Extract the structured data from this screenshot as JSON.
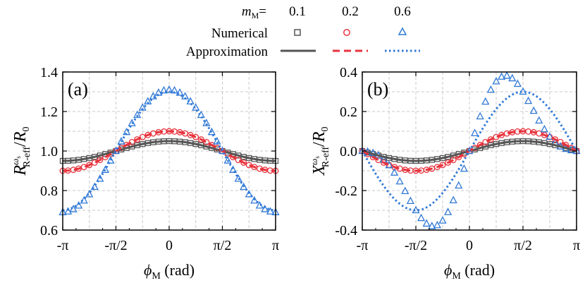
{
  "legend": {
    "header_symbol": "m",
    "header_sub": "M",
    "header_suffix": "=",
    "values": [
      "0.1",
      "0.2",
      "0.6"
    ],
    "rows": [
      "Numerical",
      "Approximation"
    ],
    "colors": [
      "#555555",
      "#e8323c",
      "#2f78d6"
    ]
  },
  "chart_data": [
    {
      "type": "line",
      "panel_label": "(a)",
      "ylabel": {
        "main": "R",
        "sup": "ω",
        "supsub": "s",
        "sub": "R-eff",
        "div": "/",
        "denom": "R",
        "denom_sub": "0"
      },
      "xlabel": {
        "main": "ϕ",
        "sub": "M",
        "unit": " (rad)"
      },
      "xlim": [
        -3.14159,
        3.14159
      ],
      "ylim": [
        0.6,
        1.4
      ],
      "yticks": [
        "0.6",
        "0.8",
        "1.0",
        "1.2",
        "1.4"
      ],
      "yticks_values": [
        0.6,
        0.8,
        1.0,
        1.2,
        1.4
      ],
      "xticks": [
        "-π",
        "-π/2",
        "0",
        "π/2",
        "π"
      ],
      "grid": true,
      "series": [
        {
          "name": "0.1",
          "kind": "numerical",
          "amp": 0.05,
          "shift": 0.0,
          "n2": 0.0
        },
        {
          "name": "0.2",
          "kind": "numerical",
          "amp": 0.1,
          "shift": 0.0,
          "n2": 0.0
        },
        {
          "name": "0.6",
          "kind": "numerical",
          "amp": 0.31,
          "shift": 0.0,
          "n2": 0.0
        },
        {
          "name": "0.1",
          "kind": "approximation",
          "amp": 0.05,
          "shift": 0.0
        },
        {
          "name": "0.2",
          "kind": "approximation",
          "amp": 0.1,
          "shift": 0.0
        },
        {
          "name": "0.6",
          "kind": "approximation",
          "amp": 0.3,
          "shift": 0.0
        }
      ]
    },
    {
      "type": "line",
      "panel_label": "(b)",
      "ylabel": {
        "main": "X",
        "sup": "ω",
        "supsub": "s",
        "sub": "R-eff",
        "div": "/",
        "denom": "R",
        "denom_sub": "0"
      },
      "xlabel": {
        "main": "ϕ",
        "sub": "M",
        "unit": " (rad)"
      },
      "xlim": [
        -3.14159,
        3.14159
      ],
      "ylim": [
        -0.4,
        0.4
      ],
      "yticks": [
        "-0.4",
        "-0.2",
        "0.0",
        "0.2",
        "0.4"
      ],
      "yticks_values": [
        -0.4,
        -0.2,
        0.0,
        0.2,
        0.4
      ],
      "xticks": [
        "-π",
        "-π/2",
        "0",
        "π/2",
        "π"
      ],
      "grid": true,
      "series": [
        {
          "name": "0.1",
          "kind": "numerical",
          "amp": 0.05,
          "shift": 0.0,
          "n2": 0.0
        },
        {
          "name": "0.2",
          "kind": "numerical",
          "amp": 0.1,
          "shift": 0.0,
          "n2": 0.0
        },
        {
          "name": "0.6",
          "kind": "numerical",
          "amp": 0.3,
          "shift": 0.0,
          "n2": 0.14
        },
        {
          "name": "0.1",
          "kind": "approximation",
          "amp": 0.05,
          "shift": 0.0
        },
        {
          "name": "0.2",
          "kind": "approximation",
          "amp": 0.1,
          "shift": 0.0
        },
        {
          "name": "0.6",
          "kind": "approximation",
          "amp": 0.3,
          "shift": 0.0
        }
      ]
    }
  ]
}
